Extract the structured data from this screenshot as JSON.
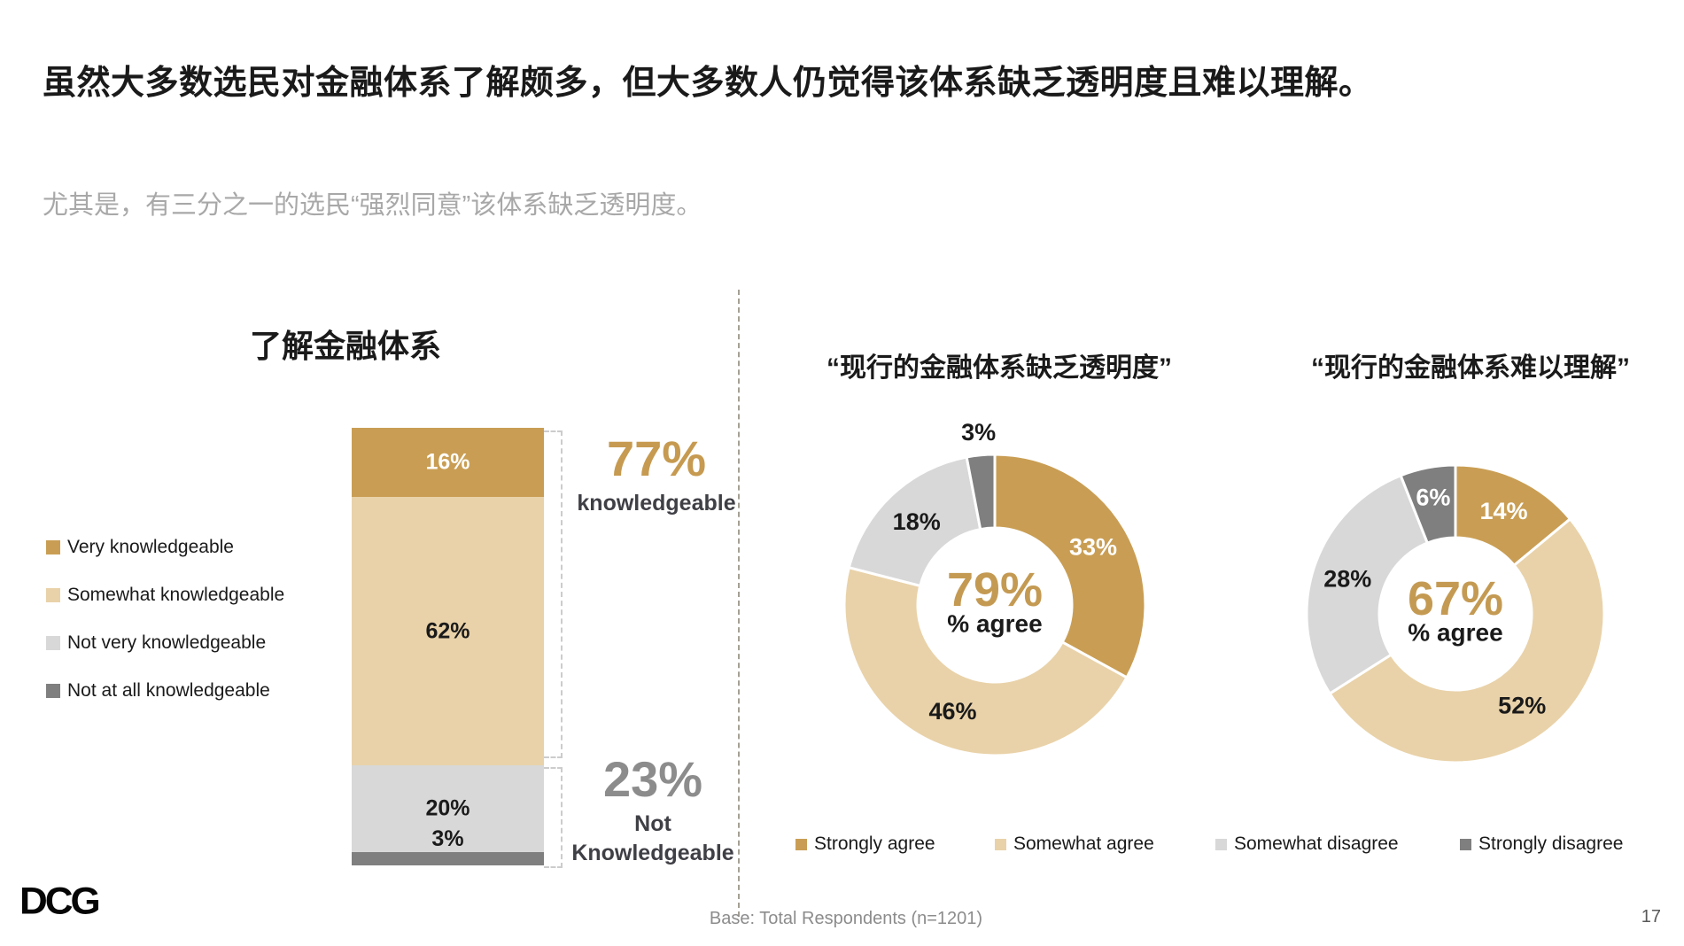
{
  "slide": {
    "title": "虽然大多数选民对金融体系了解颇多，但大多数人仍觉得该体系缺乏透明度且难以理解。",
    "subtitle": "尤其是，有三分之一的选民“强烈同意”该体系缺乏透明度。",
    "logo_text": "DCG",
    "base_note": "Base: Total Respondents (n=1201)",
    "page_number": "17"
  },
  "colors": {
    "gold": "#C99E54",
    "tan": "#E9D2A9",
    "light_gray": "#D8D8D8",
    "dark_gray": "#7F7F7F",
    "accent_gold_text": "#C49A53",
    "gray_text": "#8C8C8C"
  },
  "chart_data": [
    {
      "type": "bar",
      "title": "了解金融体系",
      "categories": [
        "Very knowledgeable",
        "Somewhat knowledgeable",
        "Not very knowledgeable",
        "Not at all knowledgeable"
      ],
      "values": [
        16,
        62,
        20,
        3
      ],
      "segments": [
        {
          "label": "16%",
          "value": 16,
          "color": "#C99E54",
          "label_color": "#FFFFFF"
        },
        {
          "label": "62%",
          "value": 62,
          "color": "#E9D2A9",
          "label_color": "#1A1A1A"
        },
        {
          "label": "20%",
          "value": 20,
          "color": "#D8D8D8",
          "label_color": "#1A1A1A"
        },
        {
          "label": "3%",
          "value": 3,
          "color": "#7F7F7F",
          "label_color": "#1A1A1A",
          "label_above": true
        }
      ],
      "legend": [
        {
          "label": "Very knowledgeable",
          "color": "#C99E54"
        },
        {
          "label": "Somewhat knowledgeable",
          "color": "#E9D2A9"
        },
        {
          "label": "Not very knowledgeable",
          "color": "#D8D8D8"
        },
        {
          "label": "Not at all knowledgeable",
          "color": "#7F7F7F"
        }
      ],
      "annotations": [
        {
          "value": "77%",
          "label": "knowledgeable"
        },
        {
          "value": "23%",
          "label": "Not Knowledgeable"
        }
      ]
    },
    {
      "type": "donut",
      "title": "“现行的金融体系缺乏透明度”",
      "center_value": "79%",
      "center_label": "% agree",
      "categories": [
        "Strongly agree",
        "Somewhat agree",
        "Somewhat disagree",
        "Strongly disagree"
      ],
      "values": [
        33,
        46,
        18,
        3
      ],
      "slices": [
        {
          "label": "33%",
          "value": 33,
          "color": "#C99E54",
          "label_color": "#FFFFFF"
        },
        {
          "label": "46%",
          "value": 46,
          "color": "#E9D2A9",
          "label_color": "#1A1A1A"
        },
        {
          "label": "18%",
          "value": 18,
          "color": "#D8D8D8",
          "label_color": "#1A1A1A"
        },
        {
          "label": "3%",
          "value": 3,
          "color": "#7F7F7F",
          "label_color": "#1A1A1A",
          "outside": true
        }
      ]
    },
    {
      "type": "donut",
      "title": "“现行的金融体系难以理解”",
      "center_value": "67%",
      "center_label": "% agree",
      "categories": [
        "Strongly agree",
        "Somewhat agree",
        "Somewhat disagree",
        "Strongly disagree"
      ],
      "values": [
        14,
        52,
        28,
        6
      ],
      "slices": [
        {
          "label": "14%",
          "value": 14,
          "color": "#C99E54",
          "label_color": "#FFFFFF"
        },
        {
          "label": "52%",
          "value": 52,
          "color": "#E9D2A9",
          "label_color": "#1A1A1A"
        },
        {
          "label": "28%",
          "value": 28,
          "color": "#D8D8D8",
          "label_color": "#1A1A1A"
        },
        {
          "label": "6%",
          "value": 6,
          "color": "#7F7F7F",
          "label_color": "#FFFFFF",
          "label_r": 134
        }
      ]
    }
  ],
  "bottom_legend": {
    "items": [
      {
        "label": "Strongly agree",
        "color": "#C99E54"
      },
      {
        "label": "Somewhat agree",
        "color": "#E9D2A9"
      },
      {
        "label": "Somewhat disagree",
        "color": "#D8D8D8"
      },
      {
        "label": "Strongly disagree",
        "color": "#7F7F7F"
      }
    ]
  }
}
